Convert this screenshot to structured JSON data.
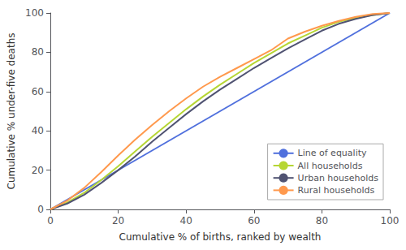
{
  "chart_data": {
    "type": "line",
    "xlabel": "Cumulative % of births, ranked by wealth",
    "ylabel": "Cumulative % under-five deaths",
    "xlim": [
      0,
      100
    ],
    "ylim": [
      0,
      100
    ],
    "xticks": [
      0,
      20,
      40,
      60,
      80,
      100
    ],
    "yticks": [
      0,
      20,
      40,
      60,
      80,
      100
    ],
    "grid": false,
    "legend": "lower right",
    "series": [
      {
        "name": "Line of equality",
        "x": [
          0,
          100
        ],
        "values": [
          0,
          100
        ]
      },
      {
        "name": "All households",
        "x": [
          0,
          5,
          10,
          15,
          20,
          25,
          30,
          35,
          40,
          45,
          50,
          55,
          60,
          65,
          70,
          75,
          80,
          85,
          90,
          95,
          100
        ],
        "values": [
          0,
          3.5,
          8.5,
          15.0,
          22.0,
          29.5,
          37.0,
          44.0,
          51.0,
          57.5,
          63.5,
          69.0,
          74.5,
          79.5,
          84.5,
          88.5,
          92.5,
          95.5,
          97.5,
          99.0,
          100
        ]
      },
      {
        "name": "Urban households",
        "x": [
          0,
          5,
          10,
          15,
          20,
          25,
          30,
          35,
          40,
          45,
          50,
          55,
          60,
          65,
          70,
          75,
          80,
          85,
          90,
          95,
          100
        ],
        "values": [
          0,
          3.0,
          7.5,
          13.5,
          20.0,
          27.0,
          34.5,
          41.5,
          48.5,
          55.0,
          61.0,
          66.5,
          72.0,
          77.0,
          82.0,
          86.5,
          91.0,
          94.5,
          97.0,
          99.0,
          100
        ]
      },
      {
        "name": "Rural households",
        "x": [
          0,
          5,
          10,
          15,
          20,
          25,
          30,
          35,
          40,
          45,
          50,
          55,
          60,
          65,
          70,
          75,
          80,
          85,
          90,
          95,
          100
        ],
        "values": [
          0,
          4.5,
          11.0,
          19.0,
          27.5,
          35.5,
          43.0,
          50.0,
          56.5,
          62.5,
          67.5,
          72.0,
          76.5,
          81.0,
          87.0,
          90.5,
          93.5,
          96.0,
          98.0,
          99.5,
          100
        ]
      }
    ]
  }
}
